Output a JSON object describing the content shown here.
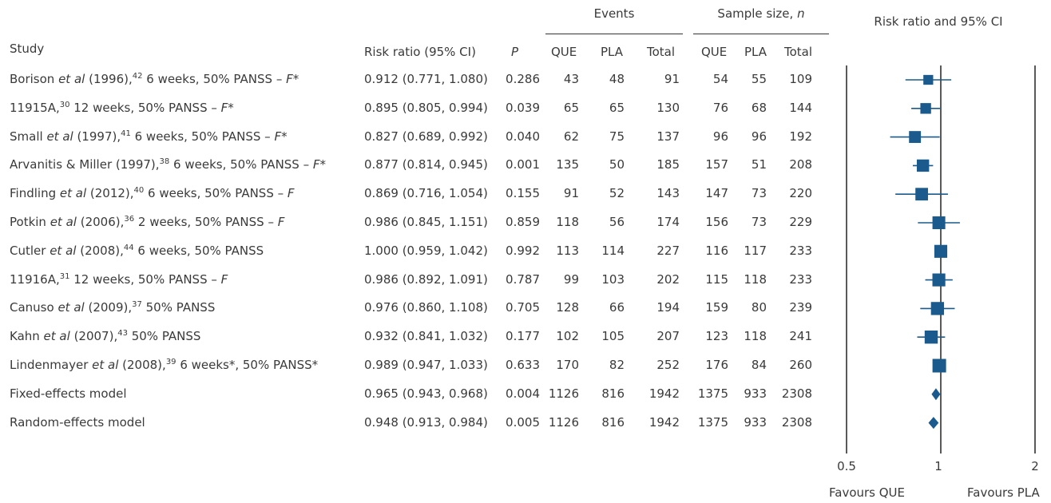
{
  "headers": {
    "events": "Events",
    "sample_size": "Sample size, ",
    "sample_size_n": "n",
    "plot_title": "Risk ratio and 95% CI",
    "study": "Study",
    "risk_ratio": "Risk ratio (95% CI)",
    "p": "P",
    "que": "QUE",
    "pla": "PLA",
    "total": "Total"
  },
  "rows": [
    {
      "pre": "Borison ",
      "etal": "et al",
      "yr": " (1996),",
      "ref": "42",
      "post": " 6 weeks, 50% PANSS – ",
      "f": "F*",
      "rr": "0.912 (0.771, 1.080)",
      "p": "0.286",
      "eq": "43",
      "ep": "48",
      "et": "91",
      "sq": "54",
      "sp": "55",
      "st": "109"
    },
    {
      "pre": "11915A,",
      "etal": "",
      "yr": "",
      "ref": "30",
      "post": " 12 weeks, 50% PANSS – ",
      "f": "F*",
      "rr": "0.895 (0.805, 0.994)",
      "p": "0.039",
      "eq": "65",
      "ep": "65",
      "et": "130",
      "sq": "76",
      "sp": "68",
      "st": "144"
    },
    {
      "pre": "Small ",
      "etal": "et al",
      "yr": " (1997),",
      "ref": "41",
      "post": " 6 weeks, 50% PANSS – ",
      "f": "F*",
      "rr": "0.827 (0.689, 0.992)",
      "p": "0.040",
      "eq": "62",
      "ep": "75",
      "et": "137",
      "sq": "96",
      "sp": "96",
      "st": "192"
    },
    {
      "pre": "Arvanitis & Miller (1997),",
      "etal": "",
      "yr": "",
      "ref": "38",
      "post": " 6 weeks, 50% PANSS – ",
      "f": "F*",
      "rr": "0.877 (0.814, 0.945)",
      "p": "0.001",
      "eq": "135",
      "ep": "50",
      "et": "185",
      "sq": "157",
      "sp": "51",
      "st": "208"
    },
    {
      "pre": "Findling ",
      "etal": "et al",
      "yr": " (2012),",
      "ref": "40",
      "post": " 6 weeks, 50% PANSS – ",
      "f": "F",
      "rr": "0.869 (0.716, 1.054)",
      "p": "0.155",
      "eq": "91",
      "ep": "52",
      "et": "143",
      "sq": "147",
      "sp": "73",
      "st": "220"
    },
    {
      "pre": "Potkin ",
      "etal": "et al",
      "yr": " (2006),",
      "ref": "36",
      "post": " 2 weeks, 50% PANSS – ",
      "f": "F",
      "rr": "0.986 (0.845, 1.151)",
      "p": "0.859",
      "eq": "118",
      "ep": "56",
      "et": "174",
      "sq": "156",
      "sp": "73",
      "st": "229"
    },
    {
      "pre": "Cutler ",
      "etal": "et al",
      "yr": " (2008),",
      "ref": "44",
      "post": " 6 weeks, 50% PANSS",
      "f": "",
      "rr": "1.000 (0.959, 1.042)",
      "p": "0.992",
      "eq": "113",
      "ep": "114",
      "et": "227",
      "sq": "116",
      "sp": "117",
      "st": "233"
    },
    {
      "pre": "11916A,",
      "etal": "",
      "yr": "",
      "ref": "31",
      "post": " 12 weeks, 50% PANSS – ",
      "f": "F",
      "rr": "0.986 (0.892, 1.091)",
      "p": "0.787",
      "eq": "99",
      "ep": "103",
      "et": "202",
      "sq": "115",
      "sp": "118",
      "st": "233"
    },
    {
      "pre": "Canuso ",
      "etal": "et al",
      "yr": " (2009),",
      "ref": "37",
      "post": " 50% PANSS",
      "f": "",
      "rr": "0.976 (0.860, 1.108)",
      "p": "0.705",
      "eq": "128",
      "ep": "66",
      "et": "194",
      "sq": "159",
      "sp": "80",
      "st": "239"
    },
    {
      "pre": "Kahn ",
      "etal": "et al",
      "yr": " (2007),",
      "ref": "43",
      "post": " 50% PANSS",
      "f": "",
      "rr": "0.932 (0.841, 1.032)",
      "p": "0.177",
      "eq": "102",
      "ep": "105",
      "et": "207",
      "sq": "123",
      "sp": "118",
      "st": "241"
    },
    {
      "pre": "Lindenmayer ",
      "etal": "et al",
      "yr": " (2008),",
      "ref": "39",
      "post": " 6 weeks*, 50% PANSS*",
      "f": "",
      "rr": "0.989 (0.947, 1.033)",
      "p": "0.633",
      "eq": "170",
      "ep": "82",
      "et": "252",
      "sq": "176",
      "sp": "84",
      "st": "260"
    },
    {
      "pre": "Fixed-effects model",
      "etal": "",
      "yr": "",
      "ref": "",
      "post": "",
      "f": "",
      "rr": "0.965 (0.943, 0.968)",
      "p": "0.004",
      "eq": "1126",
      "ep": "816",
      "et": "1942",
      "sq": "1375",
      "sp": "933",
      "st": "2308"
    },
    {
      "pre": "Random-effects model",
      "etal": "",
      "yr": "",
      "ref": "",
      "post": "",
      "f": "",
      "rr": "0.948 (0.913, 0.984)",
      "p": "0.005",
      "eq": "1126",
      "ep": "816",
      "et": "1942",
      "sq": "1375",
      "sp": "933",
      "st": "2308"
    }
  ],
  "axis": {
    "ticks": [
      "0.5",
      "1",
      "2"
    ],
    "favours_left": "Favours QUE",
    "favours_right": "Favours PLA"
  },
  "chart_data": {
    "type": "forest",
    "scale": "log",
    "xlim": [
      0.5,
      2
    ],
    "reference_line": 1,
    "marker_color": "#1b5a8c",
    "points": [
      {
        "est": 0.912,
        "lo": 0.771,
        "hi": 1.08,
        "n": 109,
        "shape": "square"
      },
      {
        "est": 0.895,
        "lo": 0.805,
        "hi": 0.994,
        "n": 144,
        "shape": "square"
      },
      {
        "est": 0.827,
        "lo": 0.689,
        "hi": 0.992,
        "n": 192,
        "shape": "square"
      },
      {
        "est": 0.877,
        "lo": 0.814,
        "hi": 0.945,
        "n": 208,
        "shape": "square"
      },
      {
        "est": 0.869,
        "lo": 0.716,
        "hi": 1.054,
        "n": 220,
        "shape": "square"
      },
      {
        "est": 0.986,
        "lo": 0.845,
        "hi": 1.151,
        "n": 229,
        "shape": "square"
      },
      {
        "est": 1.0,
        "lo": 0.959,
        "hi": 1.042,
        "n": 233,
        "shape": "square"
      },
      {
        "est": 0.986,
        "lo": 0.892,
        "hi": 1.091,
        "n": 233,
        "shape": "square"
      },
      {
        "est": 0.976,
        "lo": 0.86,
        "hi": 1.108,
        "n": 239,
        "shape": "square"
      },
      {
        "est": 0.932,
        "lo": 0.841,
        "hi": 1.032,
        "n": 241,
        "shape": "square"
      },
      {
        "est": 0.989,
        "lo": 0.947,
        "hi": 1.033,
        "n": 260,
        "shape": "square"
      },
      {
        "est": 0.965,
        "lo": 0.943,
        "hi": 0.968,
        "shape": "diamond"
      },
      {
        "est": 0.948,
        "lo": 0.913,
        "hi": 0.984,
        "shape": "diamond"
      }
    ]
  }
}
